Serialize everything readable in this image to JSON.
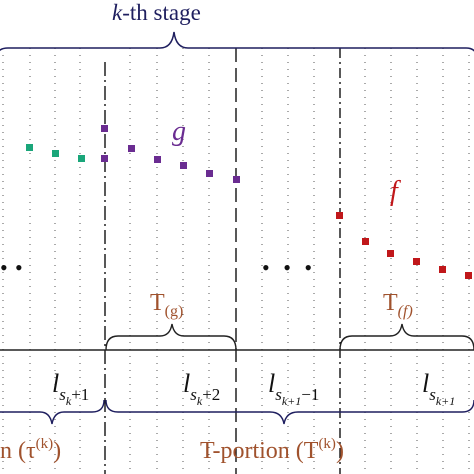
{
  "labels": {
    "stage_k": "k",
    "stage_rest": "-th stage",
    "g": "g",
    "f": "f",
    "t_g_main": "T",
    "t_g_sub": "(g)",
    "t_f_main": "T",
    "t_f_sub": "(f)",
    "ellipsis_left": "•",
    "ellipsis_mid": "• • •",
    "l1_main": "l",
    "l1_sub": "s",
    "l1_subsub": "k",
    "l1_tail": "+1",
    "l2_main": "l",
    "l2_sub": "s",
    "l2_subsub": "k",
    "l2_tail": "+2",
    "l3_main": "l",
    "l3_sub": "s",
    "l3_subsub": "k+1",
    "l3_tail": "−1",
    "l4_main": "l",
    "l4_sub": "s",
    "l4_subsub": "k+1",
    "tau_label": "n (τ",
    "tau_sup": "(k)",
    "tau_close": ")",
    "tportion_label": "T-portion (T",
    "tportion_sup": "(k)",
    "tportion_close": ")"
  },
  "colors": {
    "navy": "#1f1f5f",
    "purple": "#6a2c91",
    "teal": "#1aa67a",
    "red": "#c0171a",
    "brown": "#a0522d"
  }
}
